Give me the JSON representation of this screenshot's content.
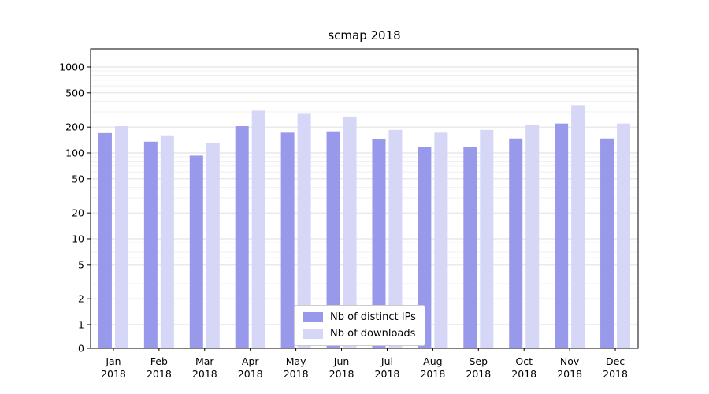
{
  "title": "scmap 2018",
  "chart_data": {
    "type": "bar",
    "title": "scmap 2018",
    "categories": [
      "Jan",
      "Feb",
      "Mar",
      "Apr",
      "May",
      "Jun",
      "Jul",
      "Aug",
      "Sep",
      "Oct",
      "Nov",
      "Dec"
    ],
    "year_label": "2018",
    "series": [
      {
        "name": "Nb of distinct IPs",
        "color": "#9999ec",
        "values": [
          170,
          135,
          93,
          205,
          172,
          178,
          145,
          118,
          118,
          147,
          220,
          147
        ]
      },
      {
        "name": "Nb of downloads",
        "color": "#d6d6f7",
        "values": [
          205,
          160,
          130,
          310,
          285,
          265,
          185,
          172,
          185,
          210,
          360,
          220
        ]
      }
    ],
    "yscale": "symlog",
    "yticks": [
      0,
      1,
      2,
      5,
      10,
      20,
      50,
      100,
      200,
      500,
      1000
    ],
    "ylim": [
      0,
      1600
    ],
    "xlabel": "",
    "ylabel": "",
    "grid": true,
    "legend_position": "lower center"
  },
  "colors": {
    "grid_major": "#dcdcdc",
    "grid_minor": "#ededed",
    "axis": "#000000",
    "background": "#ffffff",
    "legend_border": "#cccccc"
  }
}
